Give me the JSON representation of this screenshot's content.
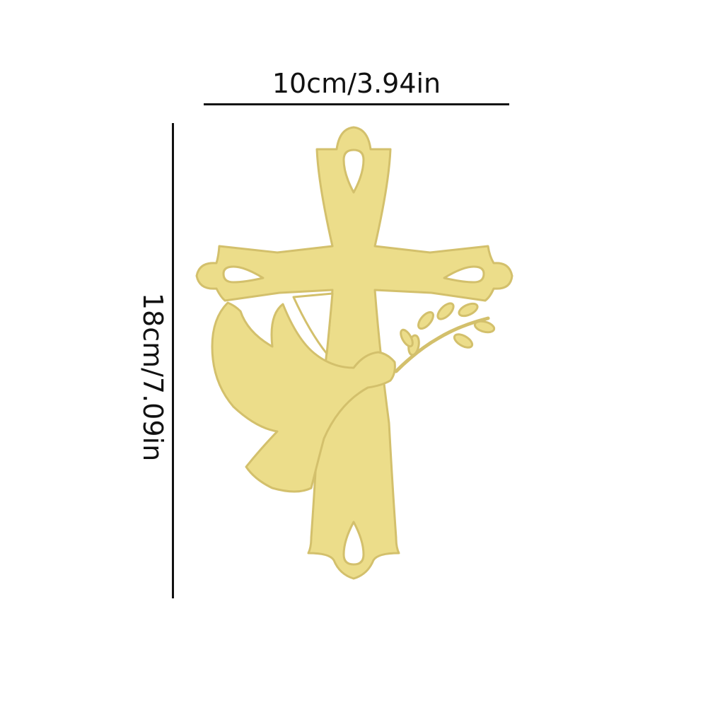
{
  "dimensions": {
    "width_label": "10cm/3.94in",
    "height_label": "18cm/7.09in"
  },
  "product": {
    "icon": "cross-with-dove-icon",
    "color": "#ECDD8A",
    "outline_color": "#D3C06C",
    "background": "#FFFFFF",
    "line_color": "#111111"
  }
}
